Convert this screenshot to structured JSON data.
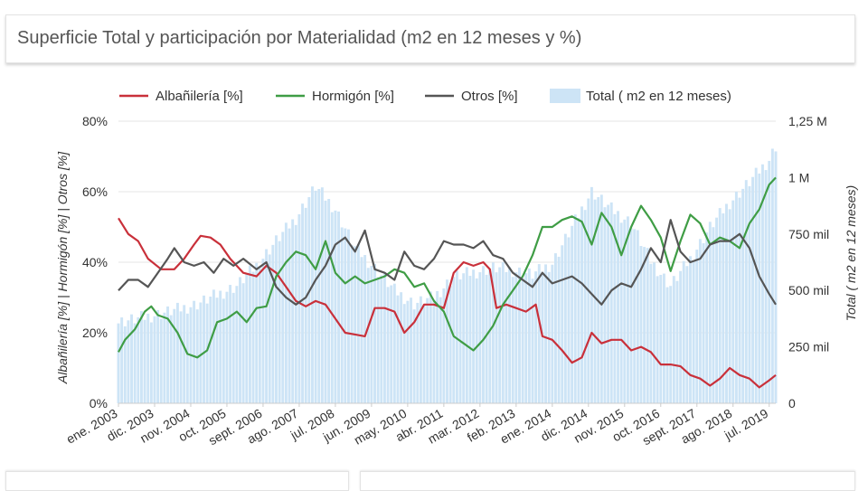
{
  "title": "Superficie Total y participación por Materialidad (m2 en 12 meses y %)",
  "legend": {
    "albanileria": "Albañilería [%]",
    "hormigon": "Hormigón [%]",
    "otros": "Otros [%]",
    "total": "Total ( m2 en 12 meses)"
  },
  "colors": {
    "albanileria": "#c9303a",
    "hormigon": "#3f9d45",
    "otros": "#555555",
    "total_bar": "#cde4f6",
    "grid": "#e6e6e6",
    "axis_text": "#333333"
  },
  "chart_data": {
    "type": "line",
    "ylabel_left": "Albañilería [%] | Hormigón [%] | Otros [%]",
    "ylabel_right": "Total ( m2 en 12 meses)",
    "ylim_left": [
      0,
      80
    ],
    "ylim_right": [
      0,
      1250000
    ],
    "yticks_left": [
      "0%",
      "20%",
      "40%",
      "60%",
      "80%"
    ],
    "yticks_right": [
      "0",
      "250 mil",
      "500 mil",
      "750 mil",
      "1 M",
      "1,25 M"
    ],
    "xticks": [
      "ene. 2003",
      "dic. 2003",
      "nov. 2004",
      "oct. 2005",
      "sept. 2006",
      "ago. 2007",
      "jul. 2008",
      "jun. 2009",
      "may. 2010",
      "abr. 2011",
      "mar. 2012",
      "feb. 2013",
      "ene. 2014",
      "dic. 2014",
      "nov. 2015",
      "oct. 2016",
      "sept. 2017",
      "ago. 2018",
      "jul. 2019"
    ],
    "x_start": "2003-01",
    "x_end": "2019-09",
    "grid": true,
    "legend_position": "top",
    "series": [
      {
        "name": "Albañilería [%]",
        "key": "albanileria",
        "axis": "left",
        "kind": "line",
        "points": [
          [
            "2003-01",
            52.5
          ],
          [
            "2003-04",
            48
          ],
          [
            "2003-07",
            46
          ],
          [
            "2003-10",
            41
          ],
          [
            "2004-02",
            38
          ],
          [
            "2004-06",
            38
          ],
          [
            "2004-09",
            41
          ],
          [
            "2004-12",
            45
          ],
          [
            "2005-02",
            47.5
          ],
          [
            "2005-05",
            47
          ],
          [
            "2005-08",
            45
          ],
          [
            "2005-11",
            41
          ],
          [
            "2006-03",
            37
          ],
          [
            "2006-07",
            36
          ],
          [
            "2006-10",
            39
          ],
          [
            "2007-01",
            37
          ],
          [
            "2007-04",
            33
          ],
          [
            "2007-07",
            29
          ],
          [
            "2007-10",
            27.5
          ],
          [
            "2008-01",
            29
          ],
          [
            "2008-04",
            28
          ],
          [
            "2008-07",
            24
          ],
          [
            "2008-10",
            20
          ],
          [
            "2009-01",
            19.5
          ],
          [
            "2009-04",
            19
          ],
          [
            "2009-07",
            27
          ],
          [
            "2009-10",
            27
          ],
          [
            "2010-01",
            26
          ],
          [
            "2010-04",
            20
          ],
          [
            "2010-07",
            23
          ],
          [
            "2010-10",
            28
          ],
          [
            "2011-01",
            28
          ],
          [
            "2011-04",
            27
          ],
          [
            "2011-07",
            37
          ],
          [
            "2011-10",
            40
          ],
          [
            "2012-01",
            39
          ],
          [
            "2012-04",
            40
          ],
          [
            "2012-06",
            38
          ],
          [
            "2012-08",
            27
          ],
          [
            "2012-11",
            28
          ],
          [
            "2013-02",
            27
          ],
          [
            "2013-05",
            26
          ],
          [
            "2013-08",
            28
          ],
          [
            "2013-10",
            19
          ],
          [
            "2014-01",
            18
          ],
          [
            "2014-04",
            15
          ],
          [
            "2014-07",
            11.5
          ],
          [
            "2014-10",
            13
          ],
          [
            "2015-01",
            20
          ],
          [
            "2015-04",
            17
          ],
          [
            "2015-07",
            18
          ],
          [
            "2015-10",
            18
          ],
          [
            "2016-01",
            15
          ],
          [
            "2016-04",
            16
          ],
          [
            "2016-07",
            14.5
          ],
          [
            "2016-10",
            11
          ],
          [
            "2017-01",
            11
          ],
          [
            "2017-04",
            10.5
          ],
          [
            "2017-07",
            8
          ],
          [
            "2017-10",
            7
          ],
          [
            "2018-01",
            5
          ],
          [
            "2018-04",
            7
          ],
          [
            "2018-07",
            10
          ],
          [
            "2018-10",
            8
          ],
          [
            "2019-01",
            7
          ],
          [
            "2019-04",
            4.5
          ],
          [
            "2019-07",
            6.5
          ],
          [
            "2019-09",
            8
          ]
        ]
      },
      {
        "name": "Hormigón [%]",
        "key": "hormigon",
        "axis": "left",
        "kind": "line",
        "points": [
          [
            "2003-01",
            14.5
          ],
          [
            "2003-03",
            18
          ],
          [
            "2003-06",
            21
          ],
          [
            "2003-09",
            26
          ],
          [
            "2003-11",
            27.5
          ],
          [
            "2004-01",
            25
          ],
          [
            "2004-04",
            24
          ],
          [
            "2004-07",
            20
          ],
          [
            "2004-10",
            14
          ],
          [
            "2005-01",
            13
          ],
          [
            "2005-04",
            15
          ],
          [
            "2005-07",
            23
          ],
          [
            "2005-10",
            24
          ],
          [
            "2006-01",
            26
          ],
          [
            "2006-04",
            23
          ],
          [
            "2006-07",
            27
          ],
          [
            "2006-10",
            27.5
          ],
          [
            "2007-01",
            36
          ],
          [
            "2007-04",
            40
          ],
          [
            "2007-07",
            43
          ],
          [
            "2007-10",
            42
          ],
          [
            "2008-01",
            38
          ],
          [
            "2008-04",
            46
          ],
          [
            "2008-07",
            37
          ],
          [
            "2008-10",
            34
          ],
          [
            "2009-01",
            36
          ],
          [
            "2009-04",
            34
          ],
          [
            "2009-07",
            35
          ],
          [
            "2009-10",
            36
          ],
          [
            "2010-01",
            38
          ],
          [
            "2010-04",
            37
          ],
          [
            "2010-07",
            33
          ],
          [
            "2010-10",
            34
          ],
          [
            "2011-01",
            29
          ],
          [
            "2011-04",
            26
          ],
          [
            "2011-07",
            19
          ],
          [
            "2011-10",
            17
          ],
          [
            "2012-01",
            15
          ],
          [
            "2012-04",
            18
          ],
          [
            "2012-07",
            22
          ],
          [
            "2012-10",
            28
          ],
          [
            "2013-01",
            32
          ],
          [
            "2013-04",
            36
          ],
          [
            "2013-07",
            42
          ],
          [
            "2013-10",
            50
          ],
          [
            "2014-01",
            50
          ],
          [
            "2014-04",
            52
          ],
          [
            "2014-07",
            53
          ],
          [
            "2014-10",
            51.5
          ],
          [
            "2015-01",
            45
          ],
          [
            "2015-04",
            54
          ],
          [
            "2015-07",
            50
          ],
          [
            "2015-10",
            42
          ],
          [
            "2016-01",
            50
          ],
          [
            "2016-04",
            56
          ],
          [
            "2016-07",
            52
          ],
          [
            "2016-10",
            47
          ],
          [
            "2017-01",
            37.5
          ],
          [
            "2017-04",
            46
          ],
          [
            "2017-07",
            53.5
          ],
          [
            "2017-10",
            51
          ],
          [
            "2018-01",
            45
          ],
          [
            "2018-04",
            47
          ],
          [
            "2018-07",
            46
          ],
          [
            "2018-10",
            44
          ],
          [
            "2019-01",
            51
          ],
          [
            "2019-04",
            55
          ],
          [
            "2019-07",
            62
          ],
          [
            "2019-09",
            64
          ]
        ]
      },
      {
        "name": "Otros [%]",
        "key": "otros",
        "axis": "left",
        "kind": "line",
        "points": [
          [
            "2003-01",
            32
          ],
          [
            "2003-04",
            35
          ],
          [
            "2003-07",
            35
          ],
          [
            "2003-10",
            33
          ],
          [
            "2004-01",
            37
          ],
          [
            "2004-04",
            41
          ],
          [
            "2004-06",
            44
          ],
          [
            "2004-09",
            40
          ],
          [
            "2004-12",
            39
          ],
          [
            "2005-03",
            40
          ],
          [
            "2005-06",
            37
          ],
          [
            "2005-09",
            41
          ],
          [
            "2005-12",
            39
          ],
          [
            "2006-03",
            41
          ],
          [
            "2006-07",
            38
          ],
          [
            "2006-10",
            40
          ],
          [
            "2007-01",
            33
          ],
          [
            "2007-04",
            30
          ],
          [
            "2007-07",
            28
          ],
          [
            "2007-10",
            30
          ],
          [
            "2008-01",
            35
          ],
          [
            "2008-04",
            39
          ],
          [
            "2008-07",
            45
          ],
          [
            "2008-10",
            47
          ],
          [
            "2009-01",
            43
          ],
          [
            "2009-04",
            49
          ],
          [
            "2009-07",
            38
          ],
          [
            "2009-10",
            37
          ],
          [
            "2010-01",
            35
          ],
          [
            "2010-04",
            43
          ],
          [
            "2010-07",
            39
          ],
          [
            "2010-10",
            38
          ],
          [
            "2011-01",
            41
          ],
          [
            "2011-04",
            46
          ],
          [
            "2011-07",
            45
          ],
          [
            "2011-10",
            45
          ],
          [
            "2012-01",
            44
          ],
          [
            "2012-04",
            46
          ],
          [
            "2012-07",
            42
          ],
          [
            "2012-10",
            41
          ],
          [
            "2013-01",
            37
          ],
          [
            "2013-04",
            35
          ],
          [
            "2013-07",
            33
          ],
          [
            "2013-10",
            37
          ],
          [
            "2014-01",
            34
          ],
          [
            "2014-04",
            35
          ],
          [
            "2014-07",
            36
          ],
          [
            "2014-10",
            34
          ],
          [
            "2015-01",
            31
          ],
          [
            "2015-04",
            28
          ],
          [
            "2015-07",
            32
          ],
          [
            "2015-10",
            34
          ],
          [
            "2016-01",
            33
          ],
          [
            "2016-04",
            38
          ],
          [
            "2016-07",
            44
          ],
          [
            "2016-10",
            40
          ],
          [
            "2017-01",
            52
          ],
          [
            "2017-04",
            43
          ],
          [
            "2017-07",
            40
          ],
          [
            "2017-10",
            41
          ],
          [
            "2018-01",
            45
          ],
          [
            "2018-04",
            46
          ],
          [
            "2018-07",
            46
          ],
          [
            "2018-10",
            48
          ],
          [
            "2019-01",
            44
          ],
          [
            "2019-04",
            36
          ],
          [
            "2019-07",
            31
          ],
          [
            "2019-09",
            28
          ]
        ]
      },
      {
        "name": "Total ( m2 en 12 meses)",
        "key": "total",
        "axis": "right",
        "kind": "bar",
        "points": [
          [
            "2003-01",
            360000
          ],
          [
            "2003-07",
            375000
          ],
          [
            "2004-01",
            395000
          ],
          [
            "2004-07",
            415000
          ],
          [
            "2005-01",
            440000
          ],
          [
            "2005-07",
            480000
          ],
          [
            "2006-01",
            520000
          ],
          [
            "2006-07",
            610000
          ],
          [
            "2007-01",
            720000
          ],
          [
            "2007-07",
            820000
          ],
          [
            "2008-01",
            960000
          ],
          [
            "2008-07",
            860000
          ],
          [
            "2009-01",
            690000
          ],
          [
            "2009-07",
            600000
          ],
          [
            "2010-01",
            500000
          ],
          [
            "2010-07",
            440000
          ],
          [
            "2011-01",
            470000
          ],
          [
            "2011-07",
            560000
          ],
          [
            "2012-01",
            580000
          ],
          [
            "2012-07",
            600000
          ],
          [
            "2013-01",
            590000
          ],
          [
            "2013-07",
            570000
          ],
          [
            "2014-01",
            620000
          ],
          [
            "2014-07",
            780000
          ],
          [
            "2015-01",
            940000
          ],
          [
            "2015-07",
            860000
          ],
          [
            "2016-01",
            800000
          ],
          [
            "2016-07",
            630000
          ],
          [
            "2017-01",
            520000
          ],
          [
            "2017-07",
            640000
          ],
          [
            "2018-01",
            780000
          ],
          [
            "2018-07",
            890000
          ],
          [
            "2019-01",
            980000
          ],
          [
            "2019-07",
            1080000
          ],
          [
            "2019-09",
            1140000
          ]
        ]
      }
    ]
  }
}
